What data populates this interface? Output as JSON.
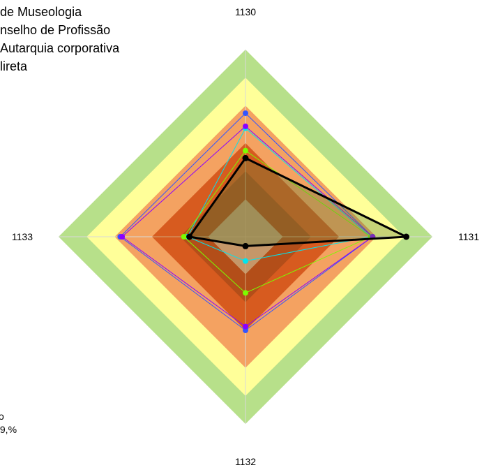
{
  "chart_data": {
    "type": "radar",
    "axes": [
      "1130",
      "1131",
      "1132",
      "1133"
    ],
    "bands": [
      {
        "from": 0.0,
        "to": 0.2,
        "color": "#c0c0c0"
      },
      {
        "from": 0.2,
        "to": 0.35,
        "color": "#9e3b2e"
      },
      {
        "from": 0.35,
        "to": 0.5,
        "color": "#e0523a"
      },
      {
        "from": 0.5,
        "to": 0.7,
        "color": "#f4a261"
      },
      {
        "from": 0.7,
        "to": 0.85,
        "color": "#ffff99"
      },
      {
        "from": 0.85,
        "to": 1.0,
        "color": "#b7e08a"
      }
    ],
    "overlay": {
      "values": [
        0.5,
        0.5,
        0.5,
        0.5
      ],
      "color": "#cc6600",
      "opacity": 0.45
    },
    "series": [
      {
        "values": [
          0.58,
          0.67,
          0.13,
          0.31
        ],
        "color": "#00e5ee",
        "width": 1
      },
      {
        "values": [
          0.66,
          0.68,
          0.5,
          0.67
        ],
        "color": "#3355ff",
        "width": 1
      },
      {
        "values": [
          0.46,
          0.67,
          0.3,
          0.33
        ],
        "color": "#7cfc00",
        "width": 1
      },
      {
        "values": [
          0.59,
          0.68,
          0.48,
          0.66
        ],
        "color": "#8b00ff",
        "width": 1
      },
      {
        "values": [
          0.42,
          0.86,
          0.05,
          0.3
        ],
        "color": "#000000",
        "width": 3,
        "fill": "#5b7d3a",
        "fill_opacity": 0.35
      }
    ],
    "range": [
      0,
      1
    ]
  },
  "legend": {
    "line1": "de Museologia",
    "line2": "nselho de Profissão",
    "line3": "Autarquia corporativa",
    "line4": "lireta"
  },
  "note": {
    "line1": "o",
    "line2": ",9,%"
  }
}
